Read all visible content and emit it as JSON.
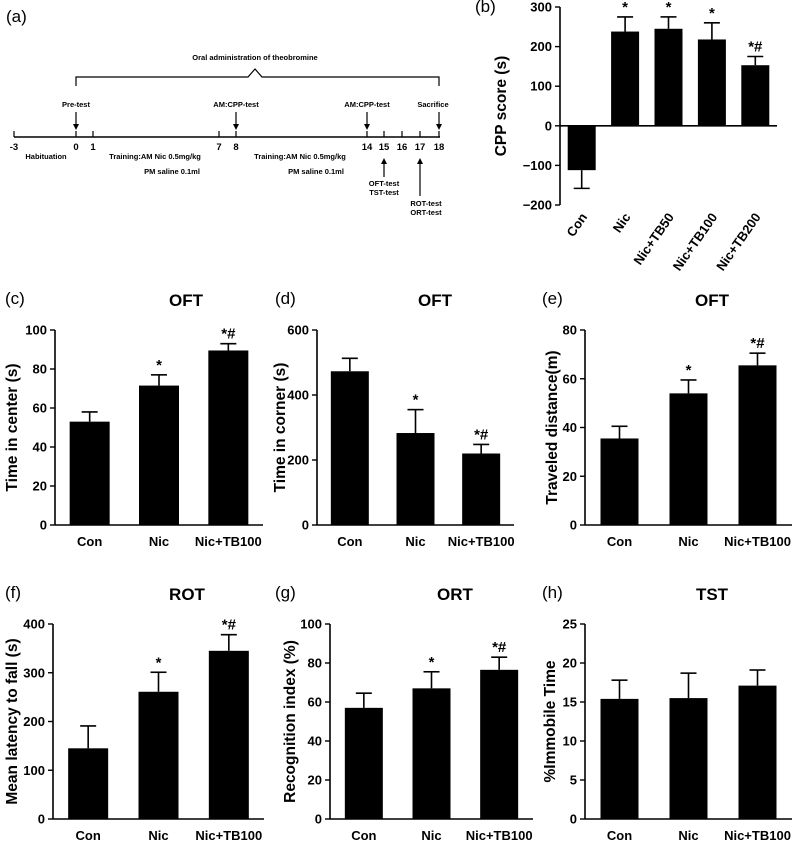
{
  "timeline": {
    "label": "(a)",
    "header": "Oral administration of theobromine",
    "days": [
      "-3",
      "0",
      "1",
      "7",
      "8",
      "14",
      "15",
      "16",
      "17",
      "18"
    ],
    "events": {
      "pretest": "Pre-test",
      "cpp1": "AM:CPP-test",
      "cpp2": "AM:CPP-test",
      "sacrifice": "Sacrifice",
      "habituation": "Habituation",
      "training1": "Training:AM Nic 0.5mg/kg",
      "saline1": "PM saline 0.1ml",
      "training2": "Training:AM Nic 0.5mg/kg",
      "saline2": "PM saline 0.1ml",
      "oft": "OFT-test",
      "tst": "TST-test",
      "rot": "ROT-test",
      "ort": "ORT-test"
    }
  },
  "chart_data": [
    {
      "id": "b",
      "label": "(b)",
      "type": "bar",
      "title": "",
      "ylabel": "CPP score (s)",
      "xlabel": "",
      "categories": [
        "Con",
        "Nic",
        "Nic+TB50",
        "Nic+TB100",
        "Nic+TB200"
      ],
      "values": [
        -112,
        238,
        245,
        218,
        153
      ],
      "errors": [
        46,
        37,
        30,
        42,
        22
      ],
      "significance": [
        "",
        "*",
        "*",
        "*",
        "*#"
      ],
      "ylim": [
        -200,
        300
      ],
      "yticks": [
        -200,
        -100,
        0,
        100,
        200,
        300
      ],
      "tick_labels": [
        "−200",
        "−100",
        "0",
        "100",
        "200",
        "300"
      ],
      "rotated_labels": true
    },
    {
      "id": "c",
      "label": "(c)",
      "type": "bar",
      "title": "OFT",
      "ylabel": "Time in center (s)",
      "xlabel": "",
      "categories": [
        "Con",
        "Nic",
        "Nic+TB100"
      ],
      "values": [
        53,
        71.5,
        89.5
      ],
      "errors": [
        5,
        5.5,
        3.5
      ],
      "significance": [
        "",
        "*",
        "*#"
      ],
      "ylim": [
        0,
        100
      ],
      "yticks": [
        0,
        20,
        40,
        60,
        80,
        100
      ],
      "tick_labels": [
        "0",
        "20",
        "40",
        "60",
        "80",
        "100"
      ]
    },
    {
      "id": "d",
      "label": "(d)",
      "type": "bar",
      "title": "OFT",
      "ylabel": "Time in corner (s)",
      "xlabel": "",
      "categories": [
        "Con",
        "Nic",
        "Nic+TB100"
      ],
      "values": [
        473,
        283,
        220
      ],
      "errors": [
        40,
        72,
        28
      ],
      "significance": [
        "",
        "*",
        "*#"
      ],
      "ylim": [
        0,
        600
      ],
      "yticks": [
        0,
        200,
        400,
        600
      ],
      "tick_labels": [
        "0",
        "200",
        "400",
        "600"
      ]
    },
    {
      "id": "e",
      "label": "(e)",
      "type": "bar",
      "title": "OFT",
      "ylabel": "Traveled distance(m)",
      "xlabel": "",
      "categories": [
        "Con",
        "Nic",
        "Nic+TB100"
      ],
      "values": [
        35.5,
        54,
        65.5
      ],
      "errors": [
        5,
        5.5,
        5
      ],
      "significance": [
        "",
        "*",
        "*#"
      ],
      "ylim": [
        0,
        80
      ],
      "yticks": [
        0,
        20,
        40,
        60,
        80
      ],
      "tick_labels": [
        "0",
        "20",
        "40",
        "60",
        "80"
      ]
    },
    {
      "id": "f",
      "label": "(f)",
      "type": "bar",
      "title": "ROT",
      "ylabel": "Mean latency to fall (s)",
      "xlabel": "",
      "categories": [
        "Con",
        "Nic",
        "Nic+TB100"
      ],
      "values": [
        145,
        261,
        345
      ],
      "errors": [
        46,
        40,
        33
      ],
      "significance": [
        "",
        "*",
        "*#"
      ],
      "ylim": [
        0,
        400
      ],
      "yticks": [
        0,
        100,
        200,
        300,
        400
      ],
      "tick_labels": [
        "0",
        "100",
        "200",
        "300",
        "400"
      ]
    },
    {
      "id": "g",
      "label": "(g)",
      "type": "bar",
      "title": "ORT",
      "ylabel": "Recognition index (%)",
      "xlabel": "",
      "categories": [
        "Con",
        "Nic",
        "Nic+TB100"
      ],
      "values": [
        57,
        67,
        76.5
      ],
      "errors": [
        7.5,
        8.5,
        6.5
      ],
      "significance": [
        "",
        "*",
        "*#"
      ],
      "ylim": [
        0,
        100
      ],
      "yticks": [
        0,
        20,
        40,
        60,
        80,
        100
      ],
      "tick_labels": [
        "0",
        "20",
        "40",
        "60",
        "80",
        "100"
      ]
    },
    {
      "id": "h",
      "label": "(h)",
      "type": "bar",
      "title": "TST",
      "ylabel": "%Immobile Time",
      "xlabel": "",
      "categories": [
        "Con",
        "Nic",
        "Nic+TB100"
      ],
      "values": [
        15.4,
        15.5,
        17.1
      ],
      "errors": [
        2.4,
        3.2,
        2.0
      ],
      "significance": [
        "",
        "",
        ""
      ],
      "ylim": [
        0,
        25
      ],
      "yticks": [
        0,
        5,
        10,
        15,
        20,
        25
      ],
      "tick_labels": [
        "0",
        "5",
        "10",
        "15",
        "20",
        "25"
      ]
    }
  ]
}
